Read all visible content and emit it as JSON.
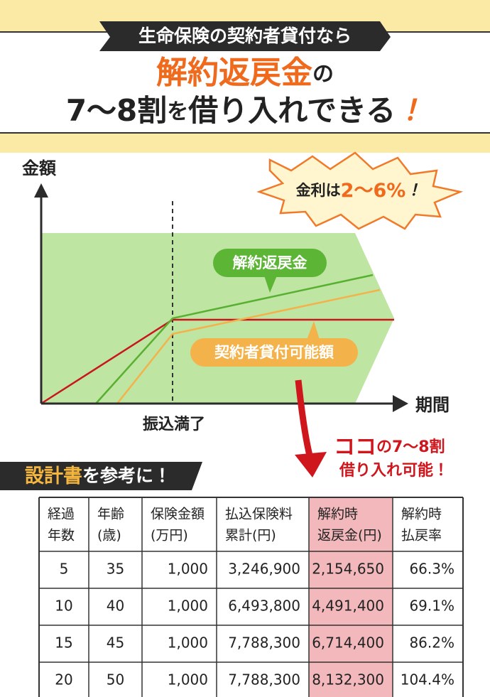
{
  "header": {
    "badge": "生命保険の契約者貸付なら",
    "title_highlight": "解約返戻金",
    "title_suffix": "の",
    "title_line2": [
      "7～8割",
      "を",
      "借り入れできる",
      "！"
    ]
  },
  "diagram": {
    "y_axis_label": "金額",
    "x_axis_label": "期間",
    "marker_label": "振込満了",
    "callout": [
      "金利は",
      "2～6%",
      "！"
    ],
    "line_labels": [
      "解約返戻金",
      "契約者貸付可能額"
    ],
    "note": [
      "ココ",
      "の7～8割",
      "借り入れ可能！"
    ]
  },
  "table_heading": [
    "設計書",
    "を参考に！"
  ],
  "table": {
    "headers": [
      [
        "経過",
        "年数"
      ],
      [
        "年齢",
        "(歳)"
      ],
      [
        "保険金額",
        "(万円)"
      ],
      [
        "払込保険料",
        "累計(円)"
      ],
      [
        "解約時",
        "返戻金(円)"
      ],
      [
        "解約時",
        "払戻率"
      ]
    ],
    "rows": [
      [
        "5",
        "35",
        "1,000",
        "3,246,900",
        "2,154,650",
        "66.3%"
      ],
      [
        "10",
        "40",
        "1,000",
        "6,493,800",
        "4,491,400",
        "69.1%"
      ],
      [
        "15",
        "45",
        "1,000",
        "7,788,300",
        "6,714,400",
        "86.2%"
      ],
      [
        "20",
        "50",
        "1,000",
        "7,788,300",
        "8,132,300",
        "104.4%"
      ]
    ]
  }
}
